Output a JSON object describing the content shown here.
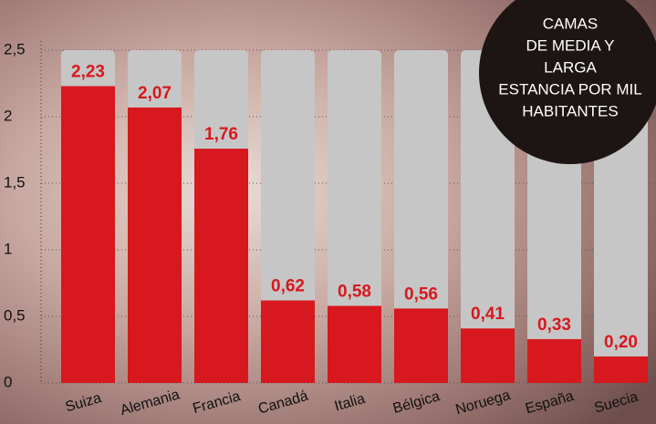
{
  "chart_data": {
    "type": "bar",
    "title": [
      "CAMAS",
      "DE MEDIA Y",
      "LARGA",
      "ESTANCIA POR MIL",
      "HABITANTES"
    ],
    "categories": [
      "Suiza",
      "Alemania",
      "Francia",
      "Canadá",
      "Italia",
      "Bélgica",
      "Noruega",
      "España",
      "Suecia"
    ],
    "values": [
      2.23,
      2.07,
      1.76,
      0.62,
      0.58,
      0.56,
      0.41,
      0.33,
      0.2
    ],
    "value_labels": [
      "2,23",
      "2,07",
      "1,76",
      "0,62",
      "0,58",
      "0,56",
      "0,41",
      "0,33",
      "0,20"
    ],
    "color": "#d7181e",
    "ylim": [
      0,
      2.5
    ],
    "yticks": [
      0,
      {
        "value": 0.5,
        "label": "0,5"
      },
      1,
      {
        "value": 1.5,
        "label": "1,5"
      },
      2,
      {
        "value": 2.5,
        "label": "2,5"
      }
    ],
    "grid": true
  }
}
